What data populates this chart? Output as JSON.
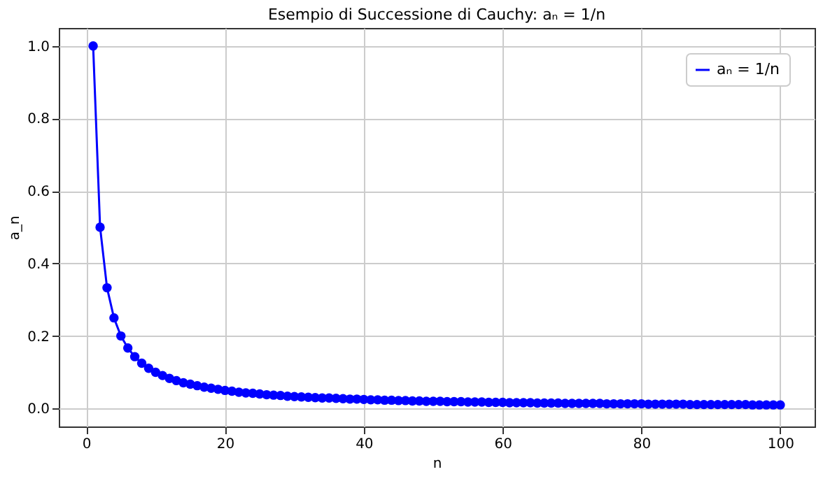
{
  "chart_data": {
    "type": "line",
    "title": "Esempio di Successione di Cauchy: aₙ = 1/n",
    "xlabel": "n",
    "ylabel": "a_n",
    "x": [
      1,
      2,
      3,
      4,
      5,
      6,
      7,
      8,
      9,
      10,
      11,
      12,
      13,
      14,
      15,
      16,
      17,
      18,
      19,
      20,
      21,
      22,
      23,
      24,
      25,
      26,
      27,
      28,
      29,
      30,
      31,
      32,
      33,
      34,
      35,
      36,
      37,
      38,
      39,
      40,
      41,
      42,
      43,
      44,
      45,
      46,
      47,
      48,
      49,
      50,
      51,
      52,
      53,
      54,
      55,
      56,
      57,
      58,
      59,
      60,
      61,
      62,
      63,
      64,
      65,
      66,
      67,
      68,
      69,
      70,
      71,
      72,
      73,
      74,
      75,
      76,
      77,
      78,
      79,
      80,
      81,
      82,
      83,
      84,
      85,
      86,
      87,
      88,
      89,
      90,
      91,
      92,
      93,
      94,
      95,
      96,
      97,
      98,
      99,
      100
    ],
    "series": [
      {
        "name": "aₙ = 1/n",
        "color": "#0000ff",
        "values": [
          1,
          0.5,
          0.333,
          0.25,
          0.2,
          0.167,
          0.143,
          0.125,
          0.111,
          0.1,
          0.091,
          0.083,
          0.077,
          0.071,
          0.067,
          0.063,
          0.059,
          0.056,
          0.053,
          0.05,
          0.048,
          0.045,
          0.043,
          0.042,
          0.04,
          0.038,
          0.037,
          0.036,
          0.034,
          0.033,
          0.032,
          0.031,
          0.03,
          0.029,
          0.029,
          0.028,
          0.027,
          0.026,
          0.026,
          0.025,
          0.024,
          0.024,
          0.023,
          0.023,
          0.022,
          0.022,
          0.021,
          0.021,
          0.02,
          0.02,
          0.02,
          0.019,
          0.019,
          0.019,
          0.018,
          0.018,
          0.018,
          0.017,
          0.017,
          0.017,
          0.016,
          0.016,
          0.016,
          0.016,
          0.015,
          0.015,
          0.015,
          0.015,
          0.014,
          0.014,
          0.014,
          0.014,
          0.014,
          0.014,
          0.013,
          0.013,
          0.013,
          0.013,
          0.013,
          0.013,
          0.012,
          0.012,
          0.012,
          0.012,
          0.012,
          0.012,
          0.011,
          0.011,
          0.011,
          0.011,
          0.011,
          0.011,
          0.011,
          0.011,
          0.011,
          0.01,
          0.01,
          0.01,
          0.01,
          0.01
        ]
      }
    ],
    "xlim": [
      -3.95,
      104.95
    ],
    "xticks": [
      0,
      20,
      40,
      60,
      80,
      100
    ],
    "ylim": [
      -0.0495,
      1.0495
    ],
    "yticks": [
      {
        "value": 0,
        "label": "0.0"
      },
      {
        "value": 0.2,
        "label": "0.2"
      },
      {
        "value": 0.4,
        "label": "0.4"
      },
      {
        "value": 0.6,
        "label": "0.6"
      },
      {
        "value": 0.8,
        "label": "0.8"
      },
      {
        "value": 1,
        "label": "1.0"
      }
    ],
    "grid": true,
    "legend": "top right",
    "marker": "circle",
    "line_style": "solid"
  }
}
